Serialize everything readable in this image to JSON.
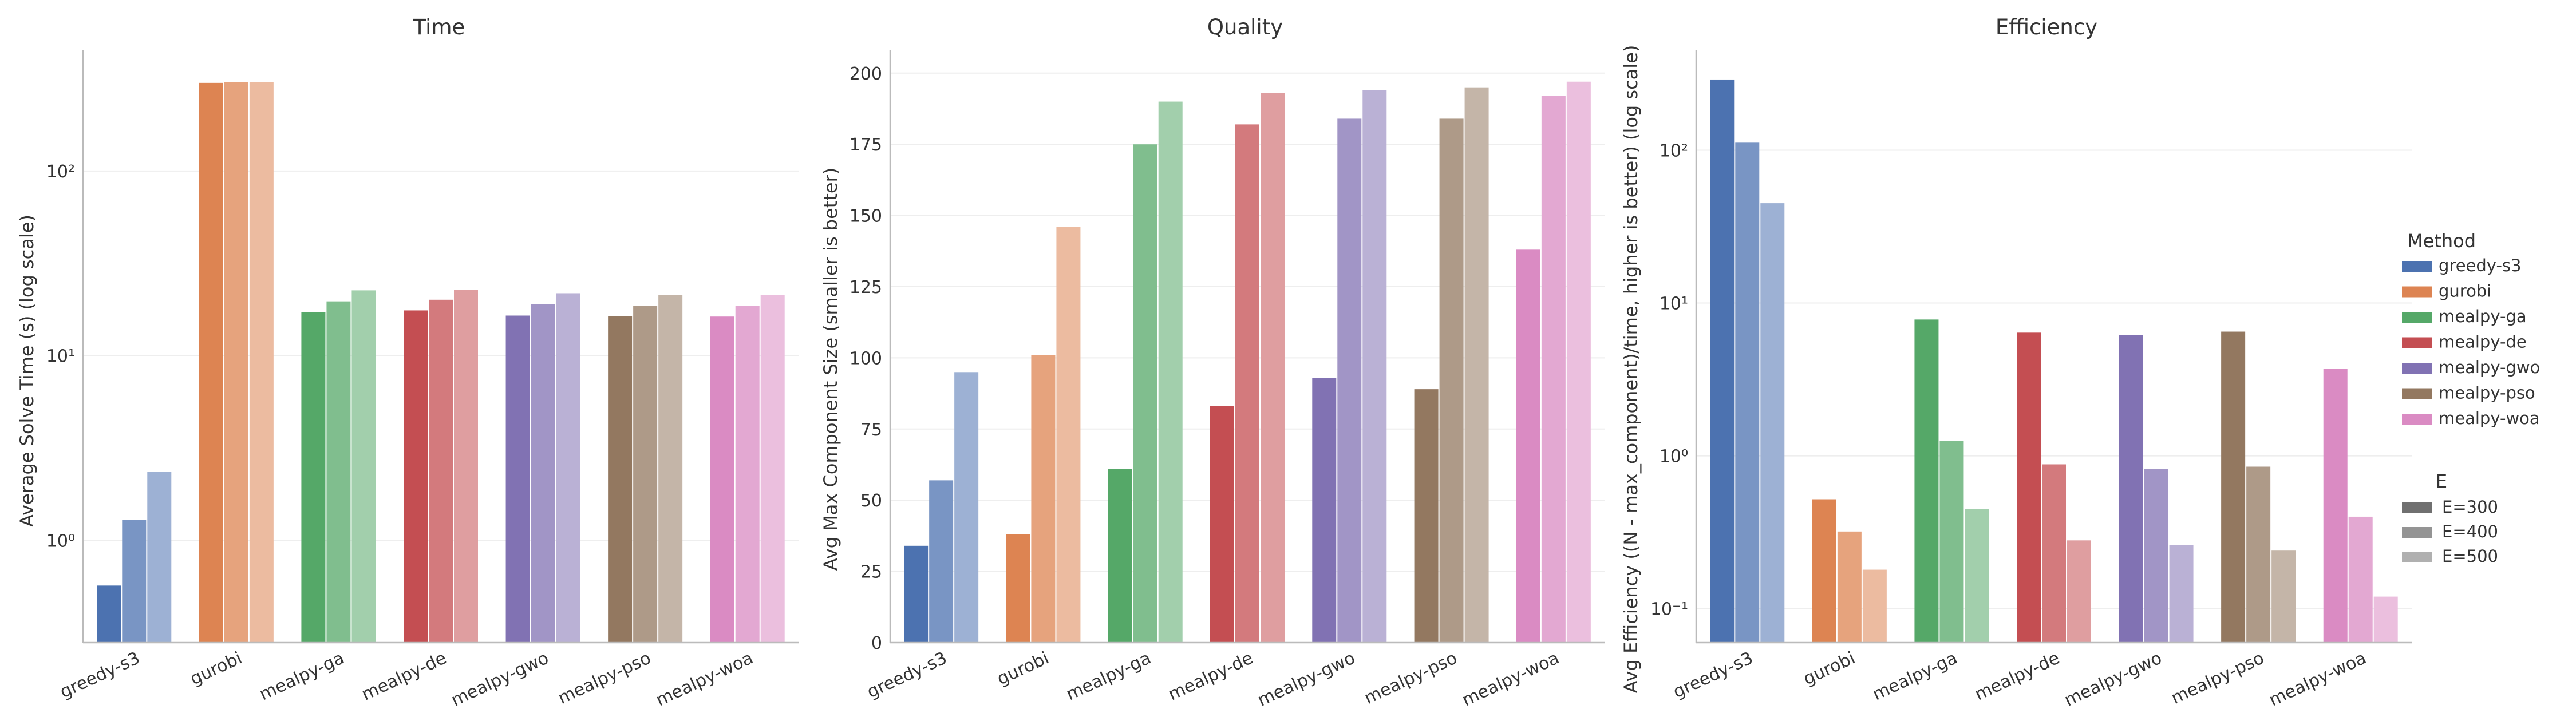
{
  "colors": {
    "greedy-s3": "#4c72b0",
    "gurobi": "#dd8452",
    "mealpy-ga": "#55a868",
    "mealpy-de": "#c44e52",
    "mealpy-gwo": "#8172b3",
    "mealpy-pso": "#937860",
    "mealpy-woa": "#da8bc3",
    "axis": "#bbbbbb",
    "grid": "#eeeeee",
    "text": "#333333"
  },
  "legend": {
    "method_title": "Method",
    "methods": [
      "greedy-s3",
      "gurobi",
      "mealpy-ga",
      "mealpy-de",
      "mealpy-gwo",
      "mealpy-pso",
      "mealpy-woa"
    ],
    "e_title": "E",
    "e_entries": [
      "E=300",
      "E=400",
      "E=500"
    ],
    "placement": "right"
  },
  "chart_data": [
    {
      "type": "bar",
      "title": "Time",
      "xlabel": "",
      "ylabel": "Average Solve Time (s) (log scale)",
      "yscale": "log",
      "ylim": [
        0.28,
        450
      ],
      "yticks": [
        1,
        10,
        100
      ],
      "ytick_labels": [
        "10⁰",
        "10¹",
        "10²"
      ],
      "grid": true,
      "categories": [
        "greedy-s3",
        "gurobi",
        "mealpy-ga",
        "mealpy-de",
        "mealpy-gwo",
        "mealpy-pso",
        "mealpy-woa"
      ],
      "series": [
        {
          "name": "E=300",
          "values": [
            0.57,
            300,
            17.2,
            17.6,
            16.5,
            16.4,
            16.3
          ]
        },
        {
          "name": "E=400",
          "values": [
            1.29,
            302,
            19.7,
            20.1,
            19.0,
            18.6,
            18.6
          ]
        },
        {
          "name": "E=500",
          "values": [
            2.35,
            303,
            22.6,
            22.8,
            21.8,
            21.3,
            21.3
          ]
        }
      ]
    },
    {
      "type": "bar",
      "title": "Quality",
      "xlabel": "",
      "ylabel": "Avg Max Component Size (smaller is better)",
      "yscale": "linear",
      "ylim": [
        0,
        208
      ],
      "yticks": [
        0,
        25,
        50,
        75,
        100,
        125,
        150,
        175,
        200
      ],
      "ytick_labels": [
        "0",
        "25",
        "50",
        "75",
        "100",
        "125",
        "150",
        "175",
        "200"
      ],
      "grid": true,
      "categories": [
        "greedy-s3",
        "gurobi",
        "mealpy-ga",
        "mealpy-de",
        "mealpy-gwo",
        "mealpy-pso",
        "mealpy-woa"
      ],
      "series": [
        {
          "name": "E=300",
          "values": [
            34,
            38,
            61,
            83,
            93,
            89,
            138
          ]
        },
        {
          "name": "E=400",
          "values": [
            57,
            101,
            175,
            182,
            184,
            184,
            192
          ]
        },
        {
          "name": "E=500",
          "values": [
            95,
            146,
            190,
            193,
            194,
            195,
            197
          ]
        }
      ]
    },
    {
      "type": "bar",
      "title": "Efficiency",
      "xlabel": "",
      "ylabel": "Avg Efficiency ((N - max_component)/time, higher is better) (log scale)",
      "yscale": "log",
      "ylim": [
        0.06,
        450
      ],
      "yticks": [
        0.1,
        1,
        10,
        100
      ],
      "ytick_labels": [
        "10⁻¹",
        "10⁰",
        "10¹",
        "10²"
      ],
      "grid": true,
      "categories": [
        "greedy-s3",
        "gurobi",
        "mealpy-ga",
        "mealpy-de",
        "mealpy-gwo",
        "mealpy-pso",
        "mealpy-woa"
      ],
      "series": [
        {
          "name": "E=300",
          "values": [
            290,
            0.52,
            7.8,
            6.4,
            6.2,
            6.5,
            3.7
          ]
        },
        {
          "name": "E=400",
          "values": [
            112,
            0.32,
            1.25,
            0.88,
            0.82,
            0.85,
            0.4
          ]
        },
        {
          "name": "E=500",
          "values": [
            45,
            0.18,
            0.45,
            0.28,
            0.26,
            0.24,
            0.12
          ]
        }
      ]
    }
  ]
}
